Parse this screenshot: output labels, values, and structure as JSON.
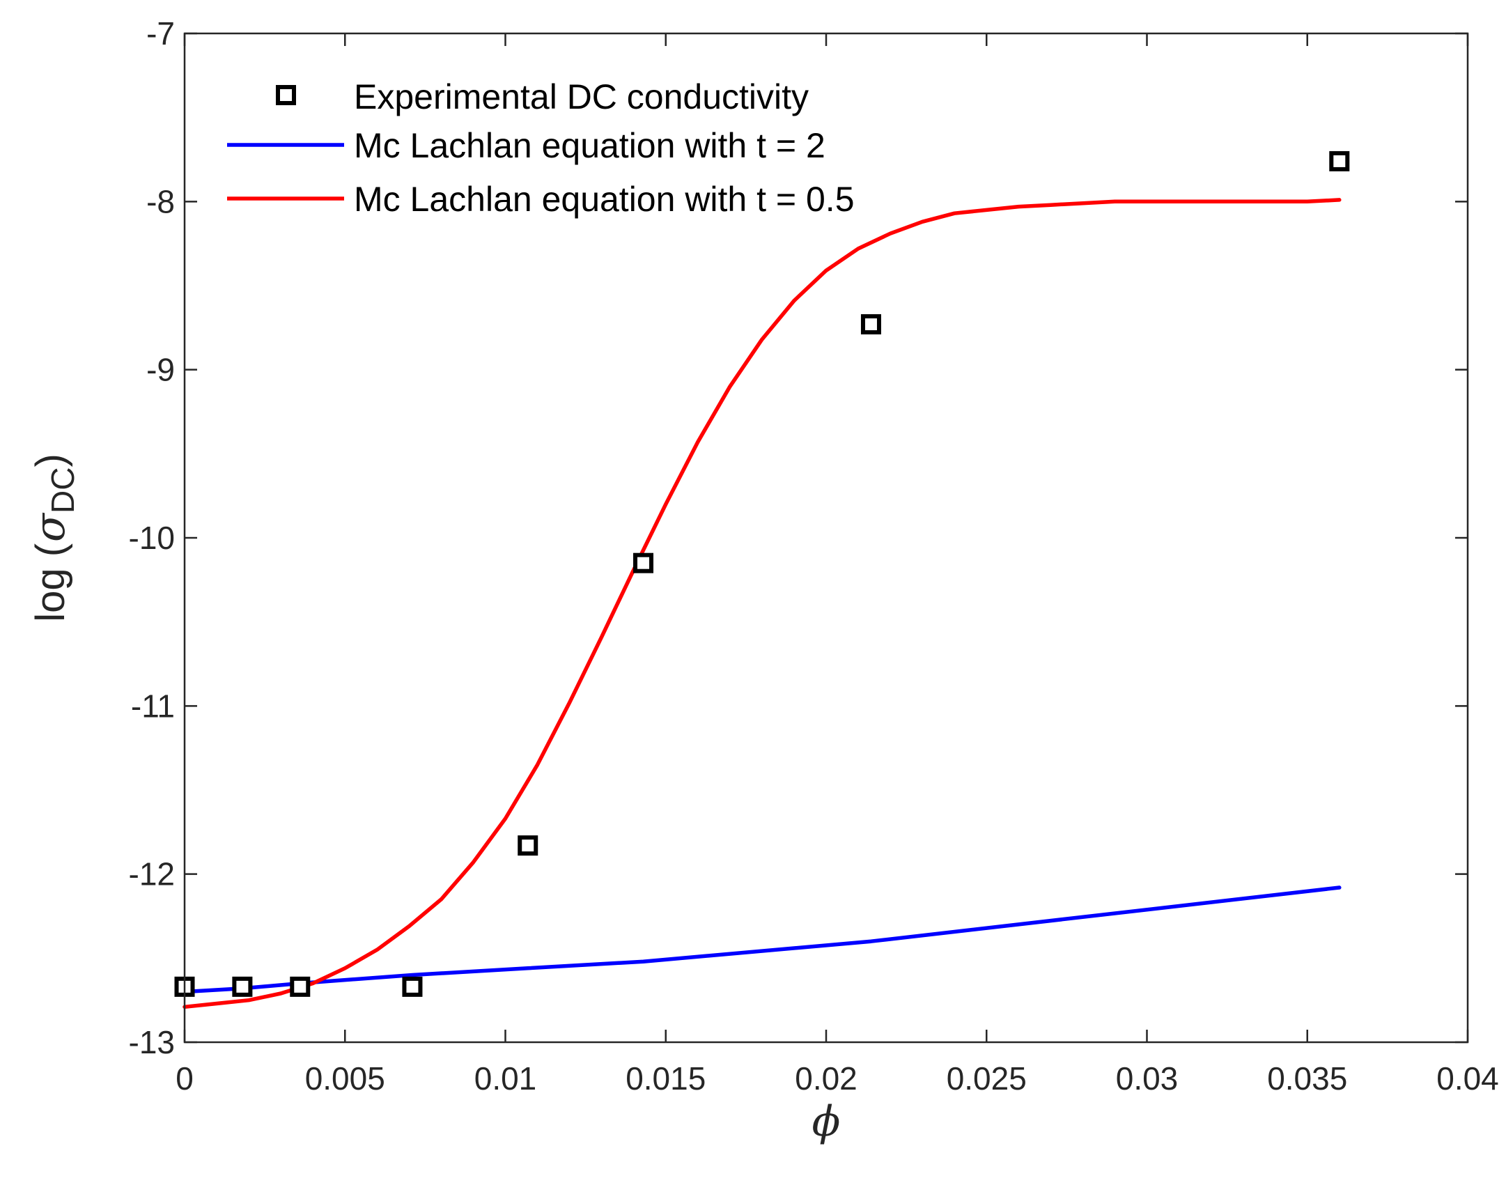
{
  "chart_data": {
    "type": "line",
    "title": "",
    "xlabel": "ϕ",
    "ylabel": {
      "prefix": "log (",
      "symbol": "σ",
      "subscript": "DC",
      "suffix": ")"
    },
    "xlim": [
      0,
      0.04
    ],
    "ylim": [
      -13,
      -7
    ],
    "xticks": [
      0,
      0.005,
      0.01,
      0.015,
      0.02,
      0.025,
      0.03,
      0.035,
      0.04
    ],
    "xtick_labels": [
      "0",
      "0.005",
      "0.01",
      "0.015",
      "0.02",
      "0.025",
      "0.03",
      "0.035",
      "0.04"
    ],
    "yticks": [
      -7,
      -8,
      -9,
      -10,
      -11,
      -12,
      -13
    ],
    "ytick_labels": [
      "-7",
      "-8",
      "-9",
      "-10",
      "-11",
      "-12",
      "-13"
    ],
    "grid": false,
    "legend_position": "top-left",
    "series": [
      {
        "name": "Experimental DC conductivity",
        "kind": "scatter",
        "marker": "square",
        "color": "#000000",
        "x": [
          0,
          0.0018,
          0.0036,
          0.0071,
          0.0107,
          0.0143,
          0.0214,
          0.036
        ],
        "y": [
          -12.67,
          -12.67,
          -12.67,
          -12.67,
          -11.83,
          -10.15,
          -8.73,
          -7.76
        ]
      },
      {
        "name": "Mc Lachlan equation with t = 2",
        "kind": "line",
        "color": "#0000ff",
        "x": [
          0,
          0.0018,
          0.0036,
          0.0071,
          0.0107,
          0.0143,
          0.0214,
          0.036
        ],
        "y": [
          -12.7,
          -12.68,
          -12.65,
          -12.6,
          -12.56,
          -12.52,
          -12.4,
          -12.08
        ]
      },
      {
        "name": "Mc Lachlan equation with t = 0.5",
        "kind": "line",
        "color": "#ff0000",
        "x": [
          0,
          0.001,
          0.002,
          0.003,
          0.004,
          0.005,
          0.006,
          0.007,
          0.008,
          0.009,
          0.01,
          0.011,
          0.012,
          0.013,
          0.014,
          0.015,
          0.016,
          0.017,
          0.018,
          0.019,
          0.02,
          0.021,
          0.022,
          0.023,
          0.024,
          0.025,
          0.026,
          0.027,
          0.028,
          0.029,
          0.03,
          0.031,
          0.032,
          0.033,
          0.034,
          0.035,
          0.036
        ],
        "y": [
          -12.79,
          -12.77,
          -12.75,
          -12.71,
          -12.65,
          -12.56,
          -12.45,
          -12.31,
          -12.15,
          -11.93,
          -11.67,
          -11.35,
          -10.98,
          -10.59,
          -10.19,
          -9.8,
          -9.43,
          -9.1,
          -8.82,
          -8.59,
          -8.41,
          -8.28,
          -8.19,
          -8.12,
          -8.07,
          -8.05,
          -8.03,
          -8.02,
          -8.01,
          -8.0,
          -8.0,
          -8.0,
          -8.0,
          -8.0,
          -8.0,
          -8.0,
          -7.99
        ]
      }
    ]
  }
}
